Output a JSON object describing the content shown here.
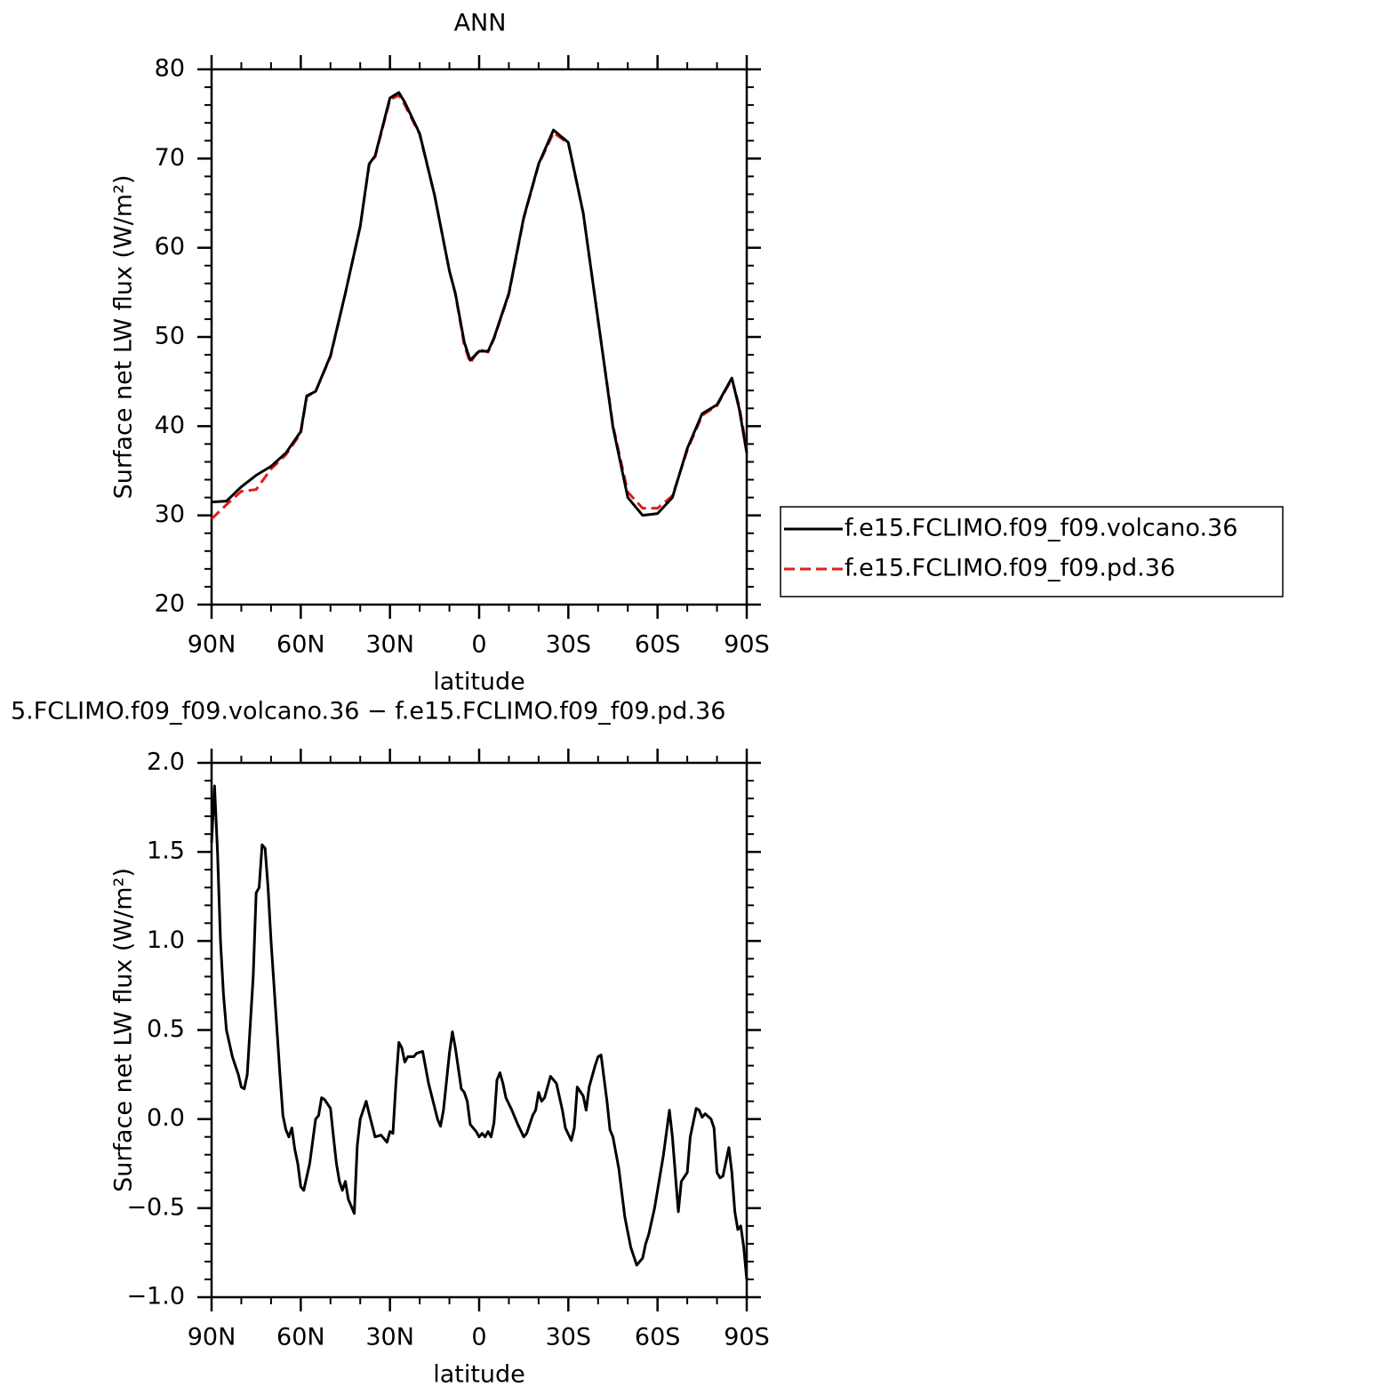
{
  "chart_data": [
    {
      "type": "line",
      "title": "ANN",
      "xlabel": "latitude",
      "ylabel": "Surface net LW flux (W/m²)",
      "xlim": [
        90,
        -90
      ],
      "xticks": [
        {
          "value": 90,
          "label": "90N"
        },
        {
          "value": 60,
          "label": "60N"
        },
        {
          "value": 30,
          "label": "30N"
        },
        0,
        {
          "value": -30,
          "label": "30S"
        },
        {
          "value": -60,
          "label": "60S"
        },
        {
          "value": -90,
          "label": "90S"
        }
      ],
      "ylim": [
        20,
        80
      ],
      "yticks": [
        20,
        30,
        40,
        50,
        60,
        70,
        80
      ],
      "legend": "right",
      "x": [
        90,
        85,
        80,
        75,
        70,
        65,
        60,
        58,
        55,
        50,
        45,
        40,
        37,
        35,
        30,
        27,
        25,
        20,
        15,
        10,
        8,
        5,
        3,
        0,
        -3,
        -5,
        -10,
        -15,
        -20,
        -25,
        -30,
        -35,
        -40,
        -45,
        -50,
        -55,
        -60,
        -65,
        -70,
        -75,
        -80,
        -85,
        -87.5,
        -90
      ],
      "series": [
        {
          "name": "f.e15.FCLIMO.f09_f09.pd.36",
          "color": "#e31a1c",
          "line_style": "dashed",
          "values": [
            29.6,
            31.2,
            32.7,
            32.9,
            35.2,
            36.8,
            39.2,
            43.3,
            43.9,
            47.8,
            54.9,
            62.4,
            69.3,
            70.2,
            76.6,
            77.1,
            76.0,
            72.7,
            65.9,
            57.4,
            54.8,
            49.1,
            47.1,
            48.6,
            48.3,
            49.8,
            54.8,
            63.3,
            69.3,
            72.9,
            71.7,
            63.9,
            51.9,
            40.1,
            32.6,
            30.8,
            30.8,
            32.2,
            37.3,
            41.2,
            42.3,
            45.3,
            42.2,
            37.4
          ]
        },
        {
          "name": "f.e15.FCLIMO.f09_f09.volcano.36",
          "color": "#000000",
          "line_style": "solid",
          "values": [
            31.5,
            31.6,
            33.2,
            34.5,
            35.5,
            37.0,
            39.4,
            43.4,
            43.9,
            47.9,
            54.9,
            62.4,
            69.4,
            70.3,
            76.8,
            77.4,
            76.3,
            72.8,
            65.9,
            57.4,
            54.9,
            49.4,
            47.4,
            48.4,
            48.4,
            49.9,
            54.9,
            63.4,
            69.4,
            73.2,
            71.8,
            63.9,
            51.9,
            39.9,
            32.0,
            30.0,
            30.2,
            32.0,
            37.5,
            41.4,
            42.4,
            45.4,
            41.9,
            37.0
          ]
        }
      ]
    },
    {
      "type": "line",
      "title": "5.FCLIMO.f09_f09.volcano.36 − f.e15.FCLIMO.f09_f09.pd.36",
      "xlabel": "latitude",
      "ylabel": "Surface net LW flux (W/m²)",
      "xlim": [
        90,
        -90
      ],
      "xticks": [
        {
          "value": 90,
          "label": "90N"
        },
        {
          "value": 60,
          "label": "60N"
        },
        {
          "value": 30,
          "label": "30N"
        },
        0,
        {
          "value": -30,
          "label": "30S"
        },
        {
          "value": -60,
          "label": "60S"
        },
        {
          "value": -90,
          "label": "90S"
        }
      ],
      "ylim": [
        -1.0,
        2.0
      ],
      "yticks": [
        {
          "value": -1.0,
          "label": "−1.0"
        },
        {
          "value": -0.5,
          "label": "−0.5"
        },
        {
          "value": 0,
          "label": "0.0"
        },
        {
          "value": 0.5,
          "label": "0.5"
        },
        {
          "value": 1.0,
          "label": "1.0"
        },
        {
          "value": 1.5,
          "label": "1.5"
        },
        {
          "value": 2.0,
          "label": "2.0"
        }
      ],
      "x": [
        90,
        89,
        88,
        87,
        86,
        85,
        83,
        81,
        80,
        79,
        78,
        76,
        75,
        74,
        73,
        72,
        71,
        70,
        68,
        67,
        66,
        65,
        64,
        63,
        62,
        61,
        60,
        59,
        57,
        55,
        54,
        53,
        52,
        50,
        49,
        48,
        47,
        46,
        45,
        44,
        42,
        41,
        40,
        38,
        37,
        35,
        33,
        31,
        30,
        29,
        28,
        27,
        26,
        25,
        24,
        22,
        21,
        19,
        17,
        14,
        13,
        12,
        10,
        9,
        8,
        6,
        5,
        4,
        3,
        1,
        0,
        -1,
        -2,
        -3,
        -4,
        -5,
        -6,
        -7,
        -8,
        -9,
        -11,
        -13,
        -15,
        -16,
        -18,
        -19,
        -20,
        -21,
        -22,
        -24,
        -25,
        -26,
        -28,
        -29,
        -31,
        -32,
        -33,
        -35,
        -36,
        -37,
        -39,
        -40,
        -41,
        -43,
        -44,
        -45,
        -47,
        -49,
        -51,
        -53,
        -55,
        -56,
        -57,
        -59,
        -62,
        -64,
        -65,
        -67,
        -68,
        -70,
        -71,
        -73,
        -74,
        -75,
        -76,
        -78,
        -79,
        -80,
        -81,
        -82,
        -84,
        -85,
        -86,
        -87,
        -88,
        -89,
        -90
      ],
      "series": [
        {
          "color": "#000000",
          "line_style": "solid",
          "values": [
            1.55,
            1.87,
            1.5,
            1.0,
            0.7,
            0.5,
            0.35,
            0.25,
            0.18,
            0.17,
            0.25,
            0.8,
            1.27,
            1.3,
            1.54,
            1.52,
            1.3,
            1.0,
            0.5,
            0.25,
            0.02,
            -0.06,
            -0.1,
            -0.05,
            -0.17,
            -0.25,
            -0.38,
            -0.4,
            -0.25,
            0,
            0.02,
            0.12,
            0.11,
            0.06,
            -0.1,
            -0.25,
            -0.35,
            -0.4,
            -0.35,
            -0.45,
            -0.53,
            -0.15,
            0,
            0.1,
            0.03,
            -0.1,
            -0.09,
            -0.13,
            -0.07,
            -0.08,
            0.2,
            0.43,
            0.4,
            0.32,
            0.35,
            0.35,
            0.37,
            0.38,
            0.2,
            0,
            -0.04,
            0.05,
            0.37,
            0.49,
            0.4,
            0.17,
            0.15,
            0.1,
            -0.03,
            -0.07,
            -0.1,
            -0.08,
            -0.1,
            -0.07,
            -0.1,
            -0.02,
            0.22,
            0.26,
            0.2,
            0.12,
            0.05,
            -0.03,
            -0.1,
            -0.08,
            0.02,
            0.05,
            0.15,
            0.1,
            0.12,
            0.24,
            0.22,
            0.2,
            0.05,
            -0.05,
            -0.12,
            -0.05,
            0.18,
            0.13,
            0.05,
            0.18,
            0.3,
            0.35,
            0.36,
            0.1,
            -0.06,
            -0.1,
            -0.28,
            -0.55,
            -0.72,
            -0.82,
            -0.78,
            -0.7,
            -0.65,
            -0.5,
            -0.2,
            0.05,
            -0.1,
            -0.52,
            -0.35,
            -0.3,
            -0.1,
            0.06,
            0.05,
            0.01,
            0.03,
            0,
            -0.05,
            -0.3,
            -0.33,
            -0.32,
            -0.16,
            -0.3,
            -0.52,
            -0.62,
            -0.6,
            -0.72,
            -0.9
          ]
        }
      ]
    }
  ]
}
